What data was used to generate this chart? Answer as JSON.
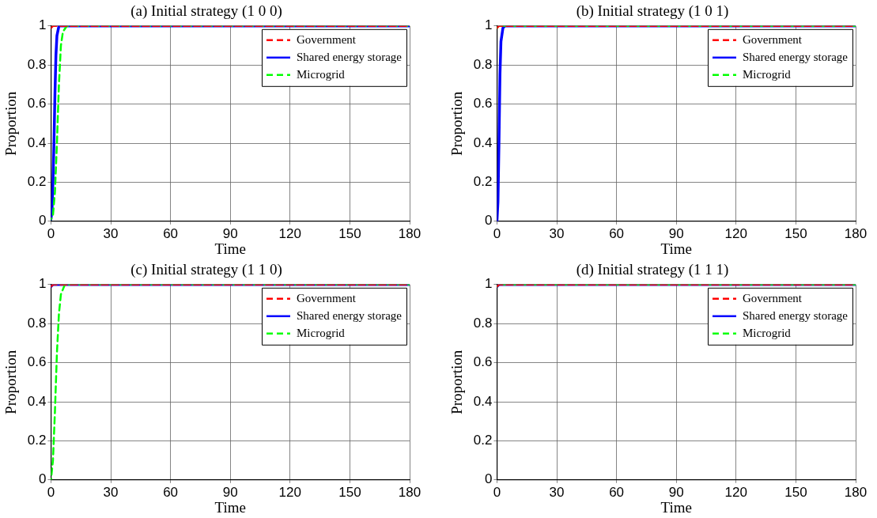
{
  "chart_data": [
    {
      "type": "line",
      "title": "(a) Initial strategy (1 0 0)",
      "xlabel": "Time",
      "ylabel": "Proportion",
      "xlim": [
        0,
        180
      ],
      "xticks": [
        0,
        30,
        60,
        90,
        120,
        150,
        180
      ],
      "ylim": [
        0,
        1
      ],
      "yticks": [
        0,
        0.2,
        0.4,
        0.6,
        0.8,
        1
      ],
      "grid": true,
      "legend": "top right",
      "marker": "none",
      "series": [
        {
          "name": "Government",
          "color": "#ff0000",
          "line_style": "dashed",
          "x": [
            0,
            1,
            180
          ],
          "values": [
            0.99,
            1,
            1
          ]
        },
        {
          "name": "Shared energy storage",
          "color": "#0000ff",
          "line_style": "solid",
          "x": [
            0,
            0.5,
            1,
            1.5,
            2,
            2.5,
            3,
            4,
            180
          ],
          "values": [
            0.01,
            0.05,
            0.2,
            0.4,
            0.65,
            0.85,
            0.95,
            1,
            1
          ]
        },
        {
          "name": "Microgrid",
          "color": "#00ff00",
          "line_style": "dashed",
          "x": [
            0,
            1,
            2,
            3,
            4,
            5,
            6,
            8,
            180
          ],
          "values": [
            0.01,
            0.03,
            0.15,
            0.4,
            0.7,
            0.9,
            0.97,
            1,
            1
          ]
        }
      ]
    },
    {
      "type": "line",
      "title": "(b) Initial strategy (1 0 1)",
      "xlabel": "Time",
      "ylabel": "Proportion",
      "xlim": [
        0,
        180
      ],
      "xticks": [
        0,
        30,
        60,
        90,
        120,
        150,
        180
      ],
      "ylim": [
        0,
        1
      ],
      "yticks": [
        0,
        0.2,
        0.4,
        0.6,
        0.8,
        1
      ],
      "grid": true,
      "legend": "top right",
      "marker": "none",
      "series": [
        {
          "name": "Government",
          "color": "#ff0000",
          "line_style": "dashed",
          "x": [
            0,
            1,
            180
          ],
          "values": [
            0.99,
            1,
            1
          ]
        },
        {
          "name": "Shared energy storage",
          "color": "#0000ff",
          "line_style": "solid",
          "x": [
            0,
            0.5,
            1,
            1.5,
            2,
            3,
            4,
            180
          ],
          "values": [
            0,
            0.1,
            0.4,
            0.75,
            0.92,
            0.99,
            1,
            1
          ]
        },
        {
          "name": "Microgrid",
          "color": "#00ff00",
          "line_style": "dashed",
          "x": [
            0,
            1,
            180
          ],
          "values": [
            0.99,
            1,
            1
          ]
        }
      ]
    },
    {
      "type": "line",
      "title": "(c) Initial strategy (1 1 0)",
      "xlabel": "Time",
      "ylabel": "Proportion",
      "xlim": [
        0,
        180
      ],
      "xticks": [
        0,
        30,
        60,
        90,
        120,
        150,
        180
      ],
      "ylim": [
        0,
        1
      ],
      "yticks": [
        0,
        0.2,
        0.4,
        0.6,
        0.8,
        1
      ],
      "grid": true,
      "legend": "top right",
      "marker": "none",
      "series": [
        {
          "name": "Government",
          "color": "#ff0000",
          "line_style": "dashed",
          "x": [
            0,
            1,
            180
          ],
          "values": [
            0.99,
            1,
            1
          ]
        },
        {
          "name": "Shared energy storage",
          "color": "#0000ff",
          "line_style": "solid",
          "x": [
            0,
            1,
            180
          ],
          "values": [
            0.99,
            1,
            1
          ]
        },
        {
          "name": "Microgrid",
          "color": "#00ff00",
          "line_style": "dashed",
          "x": [
            0,
            1,
            2,
            3,
            4,
            5,
            7,
            180
          ],
          "values": [
            0,
            0.1,
            0.35,
            0.65,
            0.85,
            0.95,
            1,
            1
          ]
        }
      ]
    },
    {
      "type": "line",
      "title": "(d) Initial strategy (1 1 1)",
      "xlabel": "Time",
      "ylabel": "Proportion",
      "xlim": [
        0,
        180
      ],
      "xticks": [
        0,
        30,
        60,
        90,
        120,
        150,
        180
      ],
      "ylim": [
        0,
        1
      ],
      "yticks": [
        0,
        0.2,
        0.4,
        0.6,
        0.8,
        1
      ],
      "grid": true,
      "legend": "top right",
      "marker": "none",
      "series": [
        {
          "name": "Government",
          "color": "#ff0000",
          "line_style": "dashed",
          "x": [
            0,
            1,
            180
          ],
          "values": [
            0.99,
            1,
            1
          ]
        },
        {
          "name": "Shared energy storage",
          "color": "#0000ff",
          "line_style": "solid",
          "x": [
            0,
            1,
            180
          ],
          "values": [
            0.99,
            1,
            1
          ]
        },
        {
          "name": "Microgrid",
          "color": "#00ff00",
          "line_style": "dashed",
          "x": [
            0,
            1,
            180
          ],
          "values": [
            0.99,
            1,
            1
          ]
        }
      ]
    }
  ]
}
